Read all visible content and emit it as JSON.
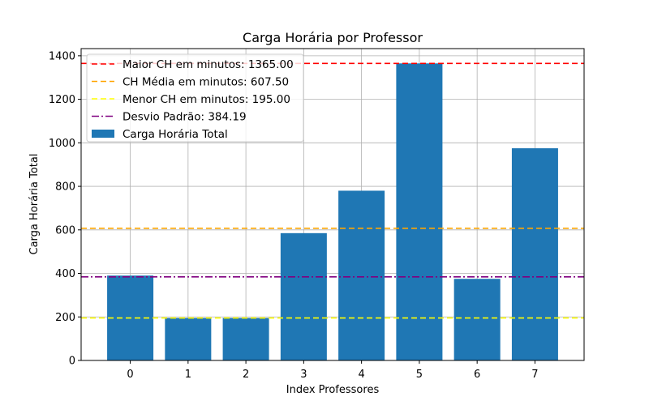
{
  "chart_data": {
    "type": "bar",
    "title": "Carga Horária por Professor",
    "xlabel": "Index Professores",
    "ylabel": "Carga Horária Total",
    "categories": [
      "0",
      "1",
      "2",
      "3",
      "4",
      "5",
      "6",
      "7"
    ],
    "series": [
      {
        "name": "Carga Horária Total",
        "color": "#1f77b4",
        "values": [
          390,
          195,
          195,
          585,
          780,
          1365,
          375,
          975
        ]
      }
    ],
    "reference_lines": [
      {
        "label": "Maior CH em minutos: 1365.00",
        "value": 1365.0,
        "color": "#ff0000",
        "style": "dashed"
      },
      {
        "label": "CH Média em minutos: 607.50",
        "value": 607.5,
        "color": "#ffa500",
        "style": "dashed"
      },
      {
        "label": "Menor CH em minutos: 195.00",
        "value": 195.0,
        "color": "#ffff00",
        "style": "dashed"
      },
      {
        "label": "Desvio Padrão: 384.19",
        "value": 384.19,
        "color": "#800080",
        "style": "dashdot"
      }
    ],
    "ylim": [
      0,
      1433
    ],
    "yticks": [
      "0",
      "200",
      "400",
      "600",
      "800",
      "1000",
      "1200",
      "1400"
    ],
    "grid": true,
    "legend_position": "top-left"
  }
}
